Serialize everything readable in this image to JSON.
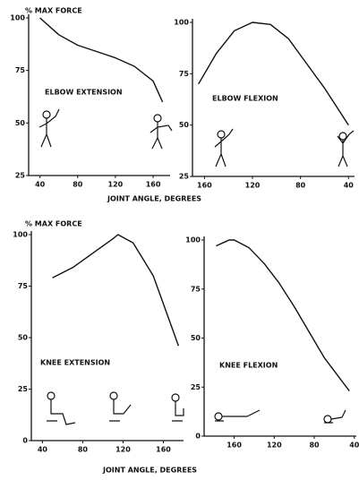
{
  "chart_data": [
    {
      "type": "line",
      "title": "ELBOW EXTENSION",
      "ylabel": "% MAX FORCE",
      "xlabel": "JOINT ANGLE, DEGREES",
      "x": [
        40,
        60,
        80,
        100,
        120,
        140,
        160,
        170
      ],
      "values": [
        100,
        92,
        87,
        84,
        81,
        77,
        70,
        60
      ],
      "xlim": [
        28,
        178
      ],
      "xticks": [
        40,
        80,
        120,
        160
      ],
      "ylim": [
        25,
        100
      ],
      "yticks": [
        25,
        50,
        75,
        100
      ],
      "color": "#111111"
    },
    {
      "type": "line",
      "title": "ELBOW FLEXION",
      "x": [
        165,
        150,
        135,
        120,
        105,
        90,
        75,
        60,
        40
      ],
      "values": [
        70,
        85,
        96,
        100,
        99,
        92,
        80,
        68,
        50
      ],
      "xlim": [
        170,
        35
      ],
      "xticks": [
        160,
        120,
        80,
        40
      ],
      "ylim": [
        25,
        100
      ],
      "yticks": [
        25,
        50,
        75,
        100
      ],
      "color": "#111111"
    },
    {
      "type": "line",
      "title": "KNEE EXTENSION",
      "ylabel": "% MAX FORCE",
      "xlabel": "JOINT ANGLE, DEGREES",
      "x": [
        50,
        70,
        90,
        110,
        115,
        130,
        150,
        175
      ],
      "values": [
        79,
        84,
        91,
        98,
        100,
        96,
        80,
        46
      ],
      "xlim": [
        29,
        180
      ],
      "xticks": [
        40,
        80,
        120,
        160
      ],
      "ylim": [
        0,
        100
      ],
      "yticks": [
        0,
        25,
        50,
        75,
        100
      ],
      "color": "#111111"
    },
    {
      "type": "line",
      "title": "KNEE FLEXION",
      "x": [
        178,
        165,
        160,
        145,
        130,
        115,
        100,
        85,
        70,
        45
      ],
      "values": [
        97,
        100,
        100,
        96,
        88,
        78,
        66,
        53,
        40,
        23
      ],
      "xlim": [
        190,
        38
      ],
      "xticks": [
        160,
        120,
        80,
        40
      ],
      "ylim": [
        0,
        100
      ],
      "yticks": [
        0,
        25,
        50,
        75,
        100
      ],
      "color": "#111111"
    }
  ]
}
